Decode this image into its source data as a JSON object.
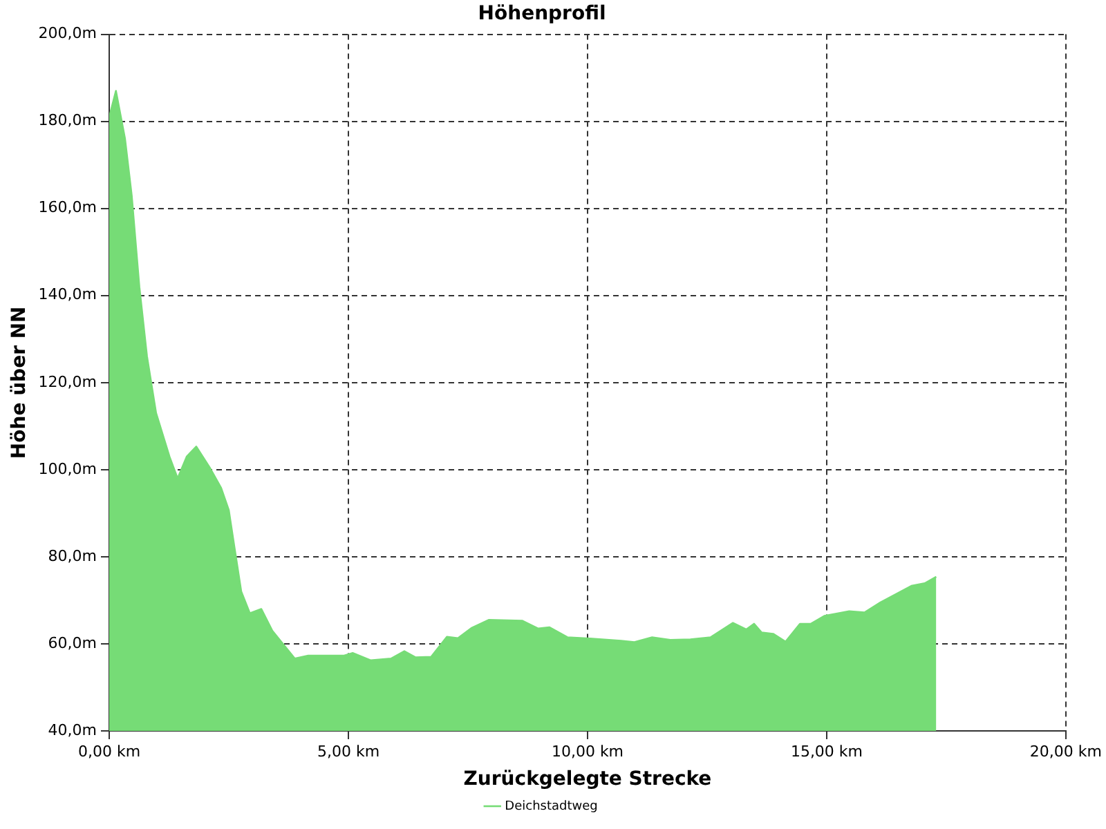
{
  "chart_data": {
    "type": "area",
    "title": "Höhenprofil",
    "xlabel": "Zurückgelegte Strecke",
    "ylabel": "Höhe über NN",
    "xlim": [
      0,
      20
    ],
    "xticks": [
      {
        "value": 0,
        "label": "0,00 km"
      },
      {
        "value": 5,
        "label": "5,00 km"
      },
      {
        "value": 10,
        "label": "10,00 km"
      },
      {
        "value": 15,
        "label": "15,00 km"
      },
      {
        "value": 20,
        "label": "20,00 km"
      }
    ],
    "ylim": [
      40,
      200
    ],
    "yticks": [
      {
        "value": 40,
        "label": "40,0m"
      },
      {
        "value": 60,
        "label": "60,0m"
      },
      {
        "value": 80,
        "label": "80,0m"
      },
      {
        "value": 100,
        "label": "100,0m"
      },
      {
        "value": 120,
        "label": "120,0m"
      },
      {
        "value": 140,
        "label": "140,0m"
      },
      {
        "value": 160,
        "label": "160,0m"
      },
      {
        "value": 180,
        "label": "180,0m"
      },
      {
        "value": 200,
        "label": "200,0m"
      }
    ],
    "grid": true,
    "legend": "bottom",
    "line_style": "solid",
    "marker": "none",
    "series": [
      {
        "name": "Deichstadtweg",
        "color": "#76dc76",
        "x": [
          0,
          0.14,
          0.33,
          0.47,
          0.63,
          0.79,
          0.98,
          1.26,
          1.43,
          1.62,
          1.82,
          2.1,
          2.34,
          2.5,
          2.62,
          2.76,
          2.94,
          3.18,
          3.41,
          3.88,
          4.16,
          4.91,
          5.09,
          5.47,
          5.89,
          6.17,
          6.4,
          6.73,
          7.06,
          7.29,
          7.57,
          7.94,
          8.64,
          8.97,
          9.2,
          9.58,
          10.05,
          10.7,
          10.98,
          11.35,
          11.73,
          12.15,
          12.57,
          13.04,
          13.32,
          13.48,
          13.64,
          13.88,
          14.14,
          14.44,
          14.67,
          14.95,
          15.28,
          15.47,
          15.79,
          16.12,
          16.77,
          17.05,
          17.29
        ],
        "values": [
          181,
          187,
          176,
          163,
          142,
          126,
          113,
          103,
          98,
          103,
          105.3,
          100.5,
          95.8,
          90.7,
          82,
          72,
          67,
          68,
          63,
          56.6,
          57.3,
          57.3,
          57.9,
          56.2,
          56.6,
          58.3,
          56.9,
          57,
          61.6,
          61.3,
          63.6,
          65.5,
          65.3,
          63.5,
          63.8,
          61.5,
          61.2,
          60.7,
          60.4,
          61.5,
          60.9,
          61,
          61.5,
          64.8,
          63.3,
          64.6,
          62.6,
          62.3,
          60.5,
          64.6,
          64.6,
          66.4,
          67.1,
          67.5,
          67.2,
          69.5,
          73.3,
          73.9,
          75.4
        ]
      }
    ]
  }
}
